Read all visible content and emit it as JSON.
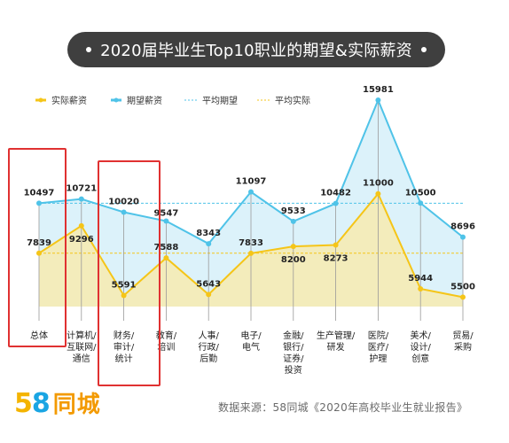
{
  "title": "2020届毕业生Top10职业的期望&实际薪资",
  "legend": {
    "actual": "实际薪资",
    "expected": "期望薪资",
    "avg_expected": "平均期望",
    "avg_actual": "平均实际"
  },
  "colors": {
    "actual": "#f5c518",
    "expected": "#4fc3e8",
    "actual_fill": "#fbe9a6",
    "expected_fill": "#bfe7f6",
    "title_bg": "#3f3f3f",
    "highlight": "#e03131"
  },
  "chart_data": {
    "type": "line",
    "categories": [
      [
        "总体"
      ],
      [
        "计算机/",
        "互联网/",
        "通信"
      ],
      [
        "财务/",
        "审计/",
        "统计"
      ],
      [
        "教育/",
        "培训"
      ],
      [
        "人事/",
        "行政/",
        "后勤"
      ],
      [
        "电子/",
        "电气"
      ],
      [
        "金融/",
        "银行/",
        "证券/",
        "投资"
      ],
      [
        "生产管理/",
        "研发"
      ],
      [
        "医院/",
        "医疗/",
        "护理"
      ],
      [
        "美术/",
        "设计/",
        "创意"
      ],
      [
        "贸易/",
        "采购"
      ]
    ],
    "series": [
      {
        "name": "期望薪资",
        "values": [
          10497,
          10721,
          10020,
          9547,
          8343,
          11097,
          9533,
          10482,
          15981,
          10500,
          8696
        ]
      },
      {
        "name": "实际薪资",
        "values": [
          7839,
          9296,
          5591,
          7588,
          5643,
          7833,
          8200,
          8273,
          11000,
          5944,
          5500
        ]
      }
    ],
    "avg_expected": 10497,
    "avg_actual": 7839,
    "highlighted_categories": [
      "总体",
      "财务/审计/统计"
    ]
  },
  "footer": {
    "logo_5": "5",
    "logo_8": "8",
    "logo_name": "同城",
    "source": "数据来源：58同城《2020年高校毕业生就业报告》"
  }
}
